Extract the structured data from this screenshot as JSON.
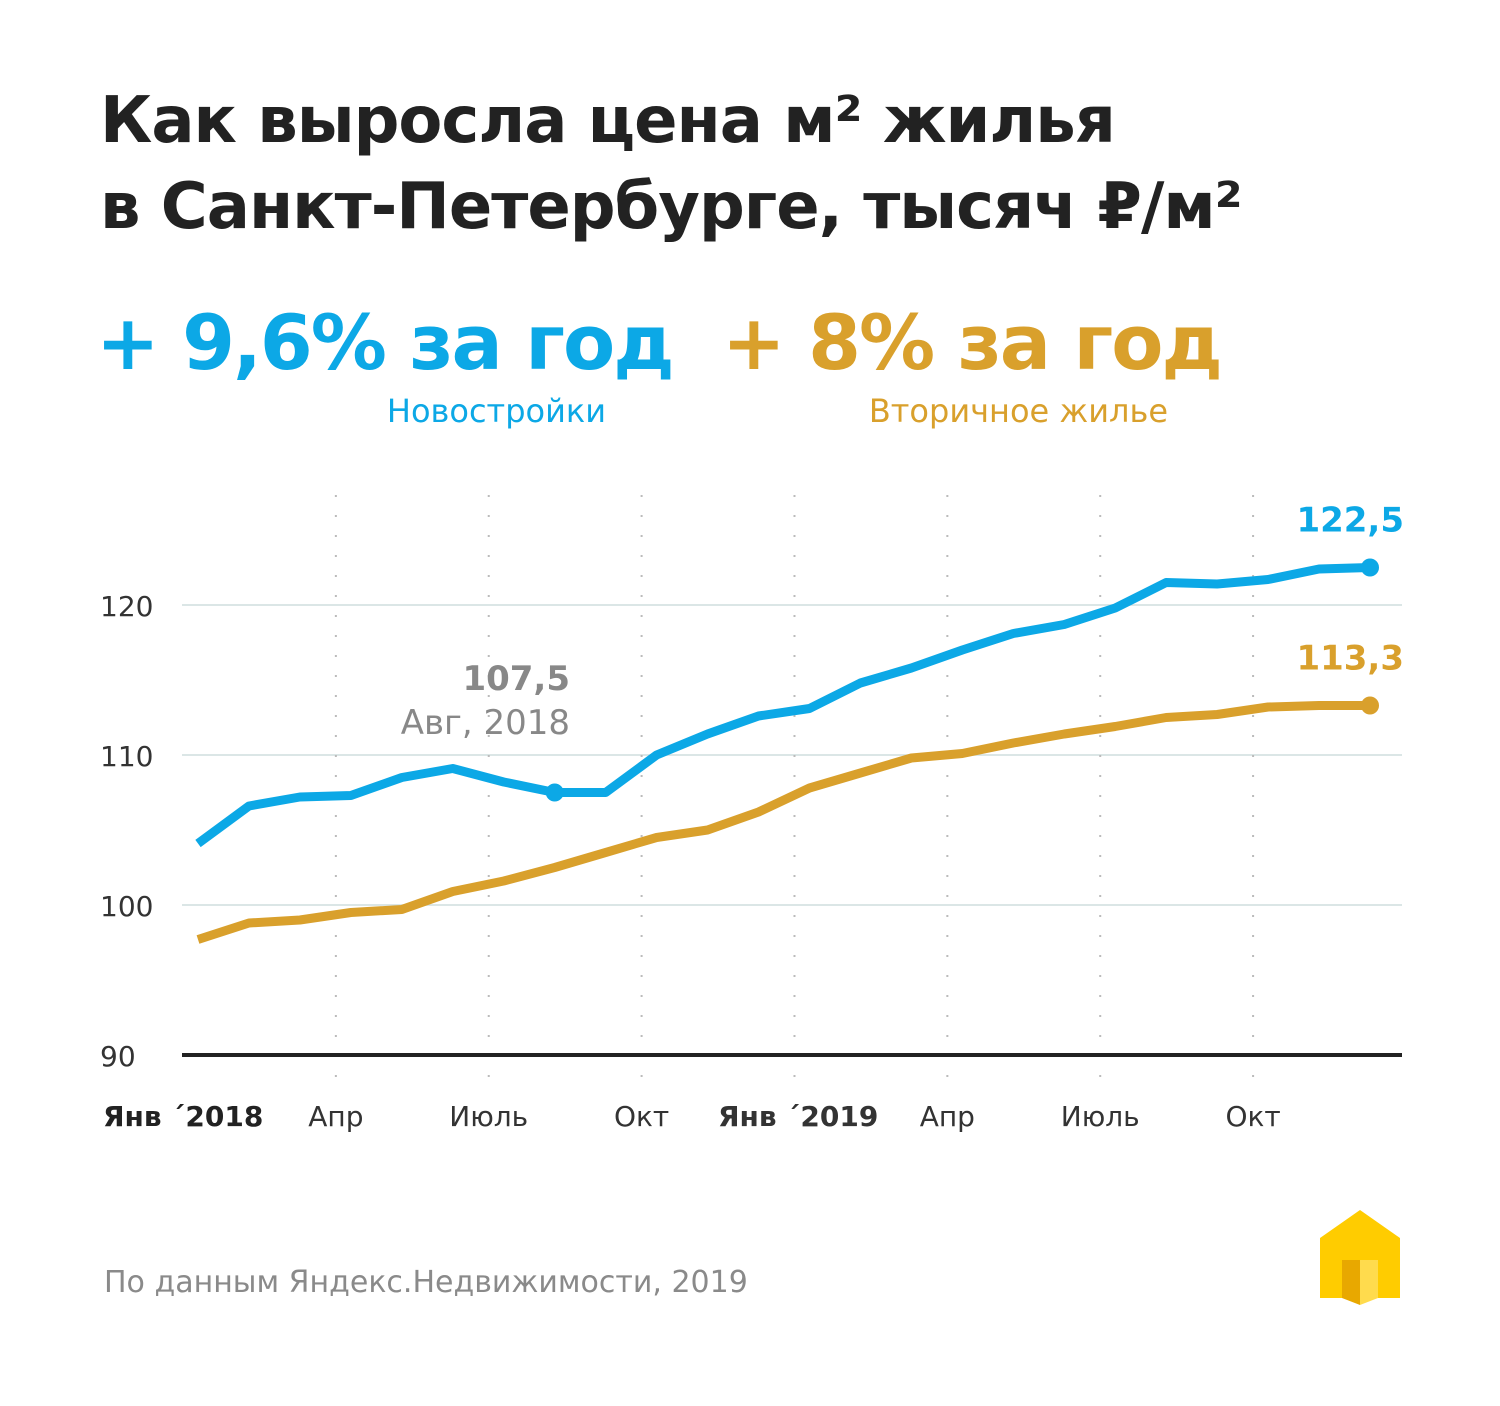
{
  "title_line1": "Как выросла цена м² жилья",
  "title_line2": "в Санкт-Петербурге, тысяч ₽/м²",
  "summary": [
    {
      "value": "+ 9,6% за год",
      "label": "Новостройки",
      "color": "#0ca8e6"
    },
    {
      "value": "+ 8% за год",
      "label": "Вторичное жилье",
      "color": "#d9a02c"
    }
  ],
  "footer": "По данным Яндекс.Недвижимости, 2019",
  "chart_data": {
    "type": "line",
    "title": "Как выросла цена м² жилья в Санкт-Петербурге, тысяч ₽/м²",
    "x": [
      "2018-01",
      "2018-02",
      "2018-03",
      "2018-04",
      "2018-05",
      "2018-06",
      "2018-07",
      "2018-08",
      "2018-09",
      "2018-10",
      "2018-11",
      "2018-12",
      "2019-01",
      "2019-02",
      "2019-03",
      "2019-04",
      "2019-05",
      "2019-06",
      "2019-07",
      "2019-08",
      "2019-09",
      "2019-10",
      "2019-11",
      "2019-12"
    ],
    "x_ticks": [
      {
        "index": 0,
        "label": "Янв ´2018",
        "bold": true
      },
      {
        "index": 3,
        "label": "Апр"
      },
      {
        "index": 6,
        "label": "Июль"
      },
      {
        "index": 9,
        "label": "Окт"
      },
      {
        "index": 12,
        "label": "Янв ´2019",
        "bold": true
      },
      {
        "index": 15,
        "label": "Апр"
      },
      {
        "index": 18,
        "label": "Июль"
      },
      {
        "index": 21,
        "label": "Окт"
      }
    ],
    "y_ticks": [
      90,
      100,
      110,
      120
    ],
    "ylim": [
      90,
      125
    ],
    "grid": true,
    "series": [
      {
        "name": "Новостройки",
        "color": "#0ca8e6",
        "values": [
          104.1,
          106.6,
          107.2,
          107.3,
          108.5,
          109.1,
          108.2,
          107.5,
          107.5,
          110.0,
          111.4,
          112.6,
          113.1,
          114.8,
          115.8,
          117.0,
          118.1,
          118.7,
          119.8,
          121.5,
          121.4,
          121.7,
          122.4,
          122.5
        ]
      },
      {
        "name": "Вторичное жилье",
        "color": "#d9a02c",
        "values": [
          97.7,
          98.8,
          99.0,
          99.5,
          99.7,
          100.9,
          101.6,
          102.5,
          103.5,
          104.5,
          105.0,
          106.2,
          107.8,
          108.8,
          109.8,
          110.1,
          110.8,
          111.4,
          111.9,
          112.5,
          112.7,
          113.2,
          113.3,
          113.3
        ]
      }
    ],
    "annotations": [
      {
        "series": 0,
        "index": 7,
        "value": "107,5",
        "label": "Авг, 2018",
        "color": "#888888"
      },
      {
        "series": 0,
        "index": 23,
        "value": "122,5",
        "color": "#0ca8e6"
      },
      {
        "series": 1,
        "index": 23,
        "value": "113,3",
        "color": "#d9a02c"
      }
    ]
  }
}
